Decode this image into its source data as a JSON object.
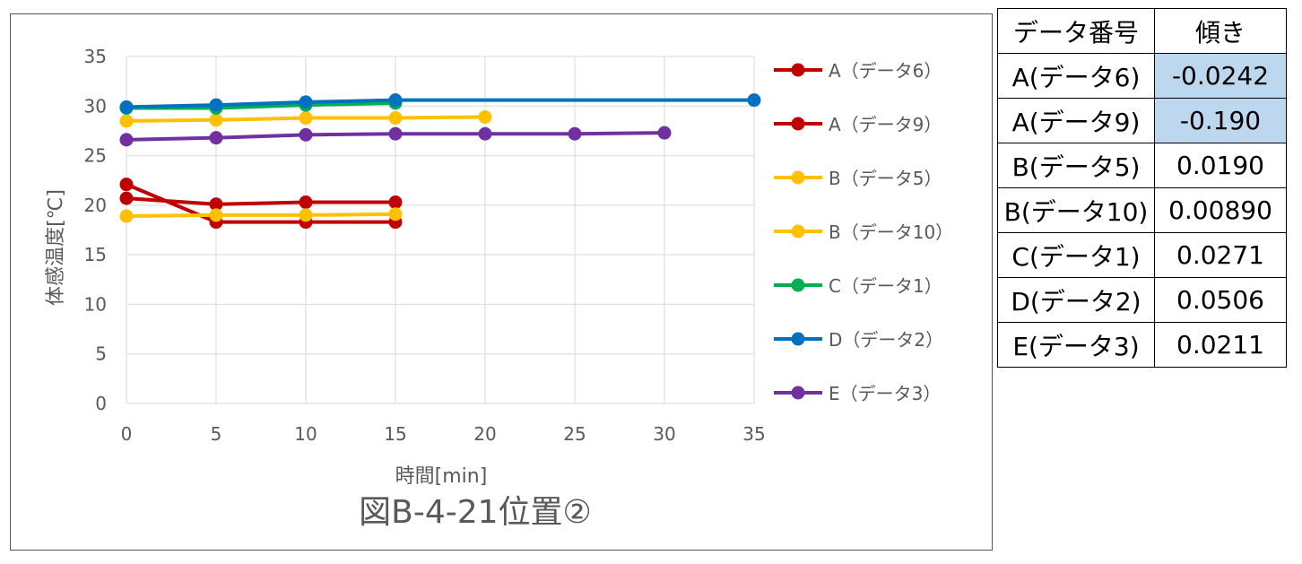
{
  "chart_data": {
    "type": "line",
    "title": "図B-4-21位置②",
    "xlabel": "時間[min]",
    "ylabel": "体感温度[℃]",
    "xlim": [
      0,
      35
    ],
    "ylim": [
      0,
      35
    ],
    "xticks": [
      "0",
      "5",
      "10",
      "15",
      "20",
      "25",
      "30",
      "35"
    ],
    "yticks": [
      "0",
      "5",
      "10",
      "15",
      "20",
      "25",
      "30",
      "35"
    ],
    "grid": true,
    "legend_position": "right",
    "series": [
      {
        "name": "A（データ6）",
        "color": "#c00000",
        "x": [
          0,
          5,
          10,
          15
        ],
        "y": [
          22.1,
          18.3,
          18.3,
          18.3
        ]
      },
      {
        "name": "A（データ9）",
        "color": "#c00000",
        "x": [
          0,
          5,
          10,
          15
        ],
        "y": [
          20.7,
          20.1,
          20.3,
          20.3
        ]
      },
      {
        "name": "B（データ5）",
        "color": "#ffc000",
        "x": [
          0,
          5,
          10,
          15,
          20
        ],
        "y": [
          28.5,
          28.6,
          28.8,
          28.8,
          28.9
        ]
      },
      {
        "name": "B（データ10）",
        "color": "#ffc000",
        "x": [
          0,
          5,
          10,
          15
        ],
        "y": [
          18.9,
          19.0,
          19.0,
          19.1
        ]
      },
      {
        "name": "C（データ1）",
        "color": "#00b050",
        "x": [
          0,
          5,
          10,
          15
        ],
        "y": [
          29.8,
          29.8,
          30.1,
          30.3
        ]
      },
      {
        "name": "D（データ2）",
        "color": "#0070c0",
        "x": [
          0,
          5,
          10,
          15,
          35
        ],
        "y": [
          29.9,
          30.1,
          30.4,
          30.6,
          30.6
        ]
      },
      {
        "name": "E（データ3）",
        "color": "#7030a0",
        "x": [
          0,
          5,
          10,
          15,
          20,
          25,
          30
        ],
        "y": [
          26.6,
          26.8,
          27.1,
          27.2,
          27.2,
          27.2,
          27.3
        ]
      }
    ]
  },
  "table": {
    "headers": [
      "データ番号",
      "傾き"
    ],
    "rows": [
      {
        "label": "A(データ6)",
        "value": "-0.0242",
        "highlight": "#bdd7ee"
      },
      {
        "label": "A(データ9)",
        "value": "-0.190",
        "highlight": "#bdd7ee"
      },
      {
        "label": "B(データ5)",
        "value": "0.0190"
      },
      {
        "label": "B(データ10)",
        "value": "0.00890"
      },
      {
        "label": "C(データ1)",
        "value": "0.0271"
      },
      {
        "label": "D(データ2)",
        "value": "0.0506"
      },
      {
        "label": "E(データ3)",
        "value": "0.0211"
      }
    ]
  }
}
